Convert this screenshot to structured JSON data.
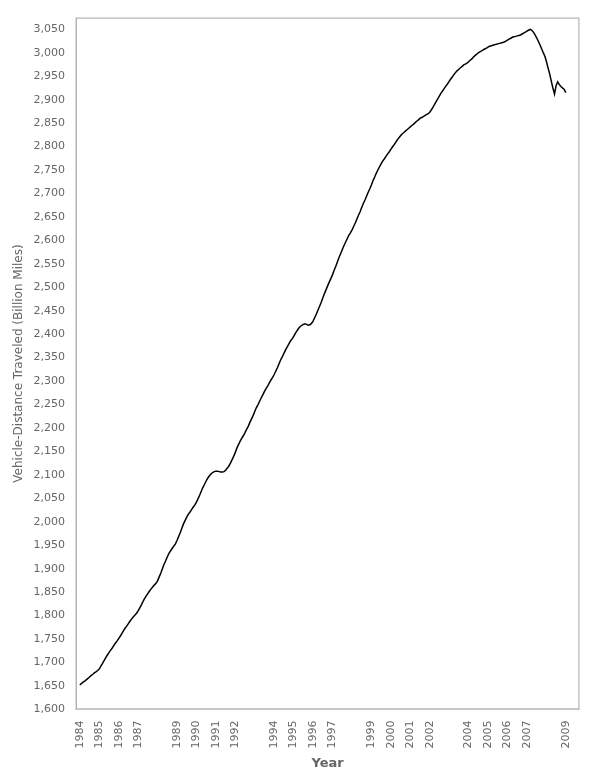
{
  "chart_data": {
    "type": "line",
    "xlabel": "Year",
    "ylabel": "Vehicle-Distance Traveled (Billion Miles)",
    "color": "#000000",
    "grid": false,
    "xlim": [
      1983.8,
      2009.7
    ],
    "xticks": [
      1984,
      1985,
      1986,
      1987,
      1989,
      1990,
      1991,
      1992,
      1994,
      1995,
      1996,
      1997,
      1999,
      2000,
      2001,
      2002,
      2004,
      2005,
      2006,
      2007,
      2009
    ],
    "ylim": [
      1600,
      3075
    ],
    "yticks": [
      {
        "value": 1600,
        "label": "1,600"
      },
      {
        "value": 1650,
        "label": "1,650"
      },
      {
        "value": 1700,
        "label": "1,700"
      },
      {
        "value": 1750,
        "label": "1,750"
      },
      {
        "value": 1800,
        "label": "1,800"
      },
      {
        "value": 1850,
        "label": "1,850"
      },
      {
        "value": 1900,
        "label": "1,900"
      },
      {
        "value": 1950,
        "label": "1,950"
      },
      {
        "value": 2000,
        "label": "2,000"
      },
      {
        "value": 2050,
        "label": "2,050"
      },
      {
        "value": 2100,
        "label": "2,100"
      },
      {
        "value": 2150,
        "label": "2,150"
      },
      {
        "value": 2200,
        "label": "2,200"
      },
      {
        "value": 2250,
        "label": "2,250"
      },
      {
        "value": 2300,
        "label": "2,300"
      },
      {
        "value": 2350,
        "label": "2,350"
      },
      {
        "value": 2400,
        "label": "2,400"
      },
      {
        "value": 2450,
        "label": "2,450"
      },
      {
        "value": 2500,
        "label": "2,500"
      },
      {
        "value": 2550,
        "label": "2,550"
      },
      {
        "value": 2600,
        "label": "2,600"
      },
      {
        "value": 2650,
        "label": "2,650"
      },
      {
        "value": 2700,
        "label": "2,700"
      },
      {
        "value": 2750,
        "label": "2,750"
      },
      {
        "value": 2800,
        "label": "2,800"
      },
      {
        "value": 2850,
        "label": "2,850"
      },
      {
        "value": 2900,
        "label": "2,900"
      },
      {
        "value": 2950,
        "label": "2,950"
      },
      {
        "value": 3000,
        "label": "3,000"
      },
      {
        "value": 3050,
        "label": "3,050"
      }
    ],
    "x": [
      1984.0,
      1984.08,
      1984.17,
      1984.25,
      1984.33,
      1984.42,
      1984.5,
      1984.58,
      1984.67,
      1984.75,
      1984.83,
      1984.92,
      1985.0,
      1985.08,
      1985.17,
      1985.25,
      1985.33,
      1985.42,
      1985.5,
      1985.58,
      1985.67,
      1985.75,
      1985.83,
      1985.92,
      1986.0,
      1986.08,
      1986.17,
      1986.25,
      1986.33,
      1986.42,
      1986.5,
      1986.58,
      1986.67,
      1986.75,
      1986.83,
      1986.92,
      1987.0,
      1987.08,
      1987.17,
      1987.25,
      1987.33,
      1987.42,
      1987.5,
      1987.58,
      1987.67,
      1987.75,
      1987.83,
      1987.92,
      1988.0,
      1988.08,
      1988.17,
      1988.25,
      1988.33,
      1988.42,
      1988.5,
      1988.58,
      1988.67,
      1988.75,
      1988.83,
      1988.92,
      1989.0,
      1989.08,
      1989.17,
      1989.25,
      1989.33,
      1989.42,
      1989.5,
      1989.58,
      1989.67,
      1989.75,
      1989.83,
      1989.92,
      1990.0,
      1990.08,
      1990.17,
      1990.25,
      1990.33,
      1990.42,
      1990.5,
      1990.58,
      1990.67,
      1990.75,
      1990.83,
      1990.92,
      1991.0,
      1991.08,
      1991.17,
      1991.25,
      1991.33,
      1991.42,
      1991.5,
      1991.58,
      1991.67,
      1991.75,
      1991.83,
      1991.92,
      1992.0,
      1992.08,
      1992.17,
      1992.25,
      1992.33,
      1992.42,
      1992.5,
      1992.58,
      1992.67,
      1992.75,
      1992.83,
      1992.92,
      1993.0,
      1993.08,
      1993.17,
      1993.25,
      1993.33,
      1993.42,
      1993.5,
      1993.58,
      1993.67,
      1993.75,
      1993.83,
      1993.92,
      1994.0,
      1994.08,
      1994.17,
      1994.25,
      1994.33,
      1994.42,
      1994.5,
      1994.58,
      1994.67,
      1994.75,
      1994.83,
      1994.92,
      1995.0,
      1995.08,
      1995.17,
      1995.25,
      1995.33,
      1995.42,
      1995.5,
      1995.58,
      1995.67,
      1995.75,
      1995.83,
      1995.92,
      1996.0,
      1996.08,
      1996.17,
      1996.25,
      1996.33,
      1996.42,
      1996.5,
      1996.58,
      1996.67,
      1996.75,
      1996.83,
      1996.92,
      1997.0,
      1997.08,
      1997.17,
      1997.25,
      1997.33,
      1997.42,
      1997.5,
      1997.58,
      1997.67,
      1997.75,
      1997.83,
      1997.92,
      1998.0,
      1998.08,
      1998.17,
      1998.25,
      1998.33,
      1998.42,
      1998.5,
      1998.58,
      1998.67,
      1998.75,
      1998.83,
      1998.92,
      1999.0,
      1999.08,
      1999.17,
      1999.25,
      1999.33,
      1999.42,
      1999.5,
      1999.58,
      1999.67,
      1999.75,
      1999.83,
      1999.92,
      2000.0,
      2000.08,
      2000.17,
      2000.25,
      2000.33,
      2000.42,
      2000.5,
      2000.58,
      2000.67,
      2000.75,
      2000.83,
      2000.92,
      2001.0,
      2001.08,
      2001.17,
      2001.25,
      2001.33,
      2001.42,
      2001.5,
      2001.58,
      2001.67,
      2001.75,
      2001.83,
      2001.92,
      2002.0,
      2002.08,
      2002.17,
      2002.25,
      2002.33,
      2002.42,
      2002.5,
      2002.58,
      2002.67,
      2002.75,
      2002.83,
      2002.92,
      2003.0,
      2003.08,
      2003.17,
      2003.25,
      2003.33,
      2003.42,
      2003.5,
      2003.58,
      2003.67,
      2003.75,
      2003.83,
      2003.92,
      2004.0,
      2004.08,
      2004.17,
      2004.25,
      2004.33,
      2004.42,
      2004.5,
      2004.58,
      2004.67,
      2004.75,
      2004.83,
      2004.92,
      2005.0,
      2005.08,
      2005.17,
      2005.25,
      2005.33,
      2005.42,
      2005.5,
      2005.58,
      2005.67,
      2005.75,
      2005.83,
      2005.92,
      2006.0,
      2006.08,
      2006.17,
      2006.25,
      2006.33,
      2006.42,
      2006.5,
      2006.58,
      2006.67,
      2006.75,
      2006.83,
      2006.92,
      2007.0,
      2007.08,
      2007.17,
      2007.25,
      2007.33,
      2007.42,
      2007.5,
      2007.58,
      2007.67,
      2007.75,
      2007.83,
      2007.92,
      2008.0,
      2008.08,
      2008.17,
      2008.25,
      2008.33,
      2008.42,
      2008.5,
      2008.58,
      2008.67,
      2008.75,
      2008.83,
      2008.92,
      2009.0
    ],
    "values": [
      1652,
      1655,
      1658,
      1660,
      1663,
      1666,
      1669,
      1672,
      1675,
      1678,
      1680,
      1683,
      1686,
      1692,
      1698,
      1704,
      1710,
      1716,
      1721,
      1726,
      1731,
      1736,
      1741,
      1746,
      1751,
      1756,
      1762,
      1768,
      1773,
      1778,
      1783,
      1788,
      1793,
      1797,
      1801,
      1805,
      1810,
      1816,
      1823,
      1830,
      1836,
      1842,
      1847,
      1852,
      1857,
      1861,
      1865,
      1869,
      1874,
      1882,
      1891,
      1900,
      1909,
      1917,
      1925,
      1932,
      1938,
      1943,
      1948,
      1953,
      1960,
      1968,
      1977,
      1986,
      1995,
      2003,
      2010,
      2016,
      2021,
      2026,
      2031,
      2036,
      2042,
      2049,
      2057,
      2065,
      2073,
      2080,
      2087,
      2093,
      2098,
      2102,
      2105,
      2107,
      2108,
      2108,
      2107,
      2106,
      2106,
      2107,
      2110,
      2114,
      2119,
      2125,
      2132,
      2140,
      2148,
      2157,
      2165,
      2172,
      2178,
      2184,
      2190,
      2197,
      2204,
      2212,
      2219,
      2227,
      2235,
      2243,
      2250,
      2257,
      2264,
      2271,
      2278,
      2284,
      2290,
      2296,
      2302,
      2308,
      2314,
      2321,
      2329,
      2337,
      2345,
      2352,
      2359,
      2366,
      2373,
      2379,
      2385,
      2390,
      2395,
      2401,
      2407,
      2412,
      2416,
      2419,
      2421,
      2422,
      2421,
      2419,
      2420,
      2423,
      2428,
      2435,
      2443,
      2451,
      2459,
      2468,
      2477,
      2486,
      2495,
      2503,
      2511,
      2519,
      2527,
      2536,
      2545,
      2554,
      2563,
      2572,
      2580,
      2588,
      2596,
      2603,
      2610,
      2616,
      2622,
      2629,
      2637,
      2645,
      2653,
      2661,
      2670,
      2678,
      2686,
      2694,
      2702,
      2710,
      2718,
      2727,
      2735,
      2743,
      2750,
      2757,
      2763,
      2769,
      2774,
      2779,
      2784,
      2789,
      2794,
      2799,
      2804,
      2809,
      2814,
      2819,
      2823,
      2827,
      2830,
      2833,
      2836,
      2839,
      2842,
      2845,
      2848,
      2851,
      2854,
      2857,
      2860,
      2862,
      2864,
      2866,
      2868,
      2870,
      2873,
      2878,
      2884,
      2890,
      2896,
      2902,
      2908,
      2914,
      2919,
      2924,
      2929,
      2934,
      2939,
      2944,
      2949,
      2954,
      2958,
      2962,
      2965,
      2968,
      2971,
      2974,
      2976,
      2978,
      2981,
      2984,
      2987,
      2991,
      2994,
      2997,
      3000,
      3002,
      3004,
      3006,
      3008,
      3010,
      3012,
      3014,
      3015,
      3016,
      3017,
      3018,
      3019,
      3020,
      3021,
      3022,
      3023,
      3025,
      3027,
      3029,
      3031,
      3033,
      3034,
      3035,
      3036,
      3037,
      3038,
      3040,
      3042,
      3044,
      3046,
      3048,
      3050,
      3048,
      3044,
      3038,
      3032,
      3025,
      3017,
      3009,
      3001,
      2993,
      2982,
      2969,
      2955,
      2940,
      2926,
      2912,
      2930,
      2938,
      2932,
      2928,
      2925,
      2922,
      2915
    ]
  }
}
